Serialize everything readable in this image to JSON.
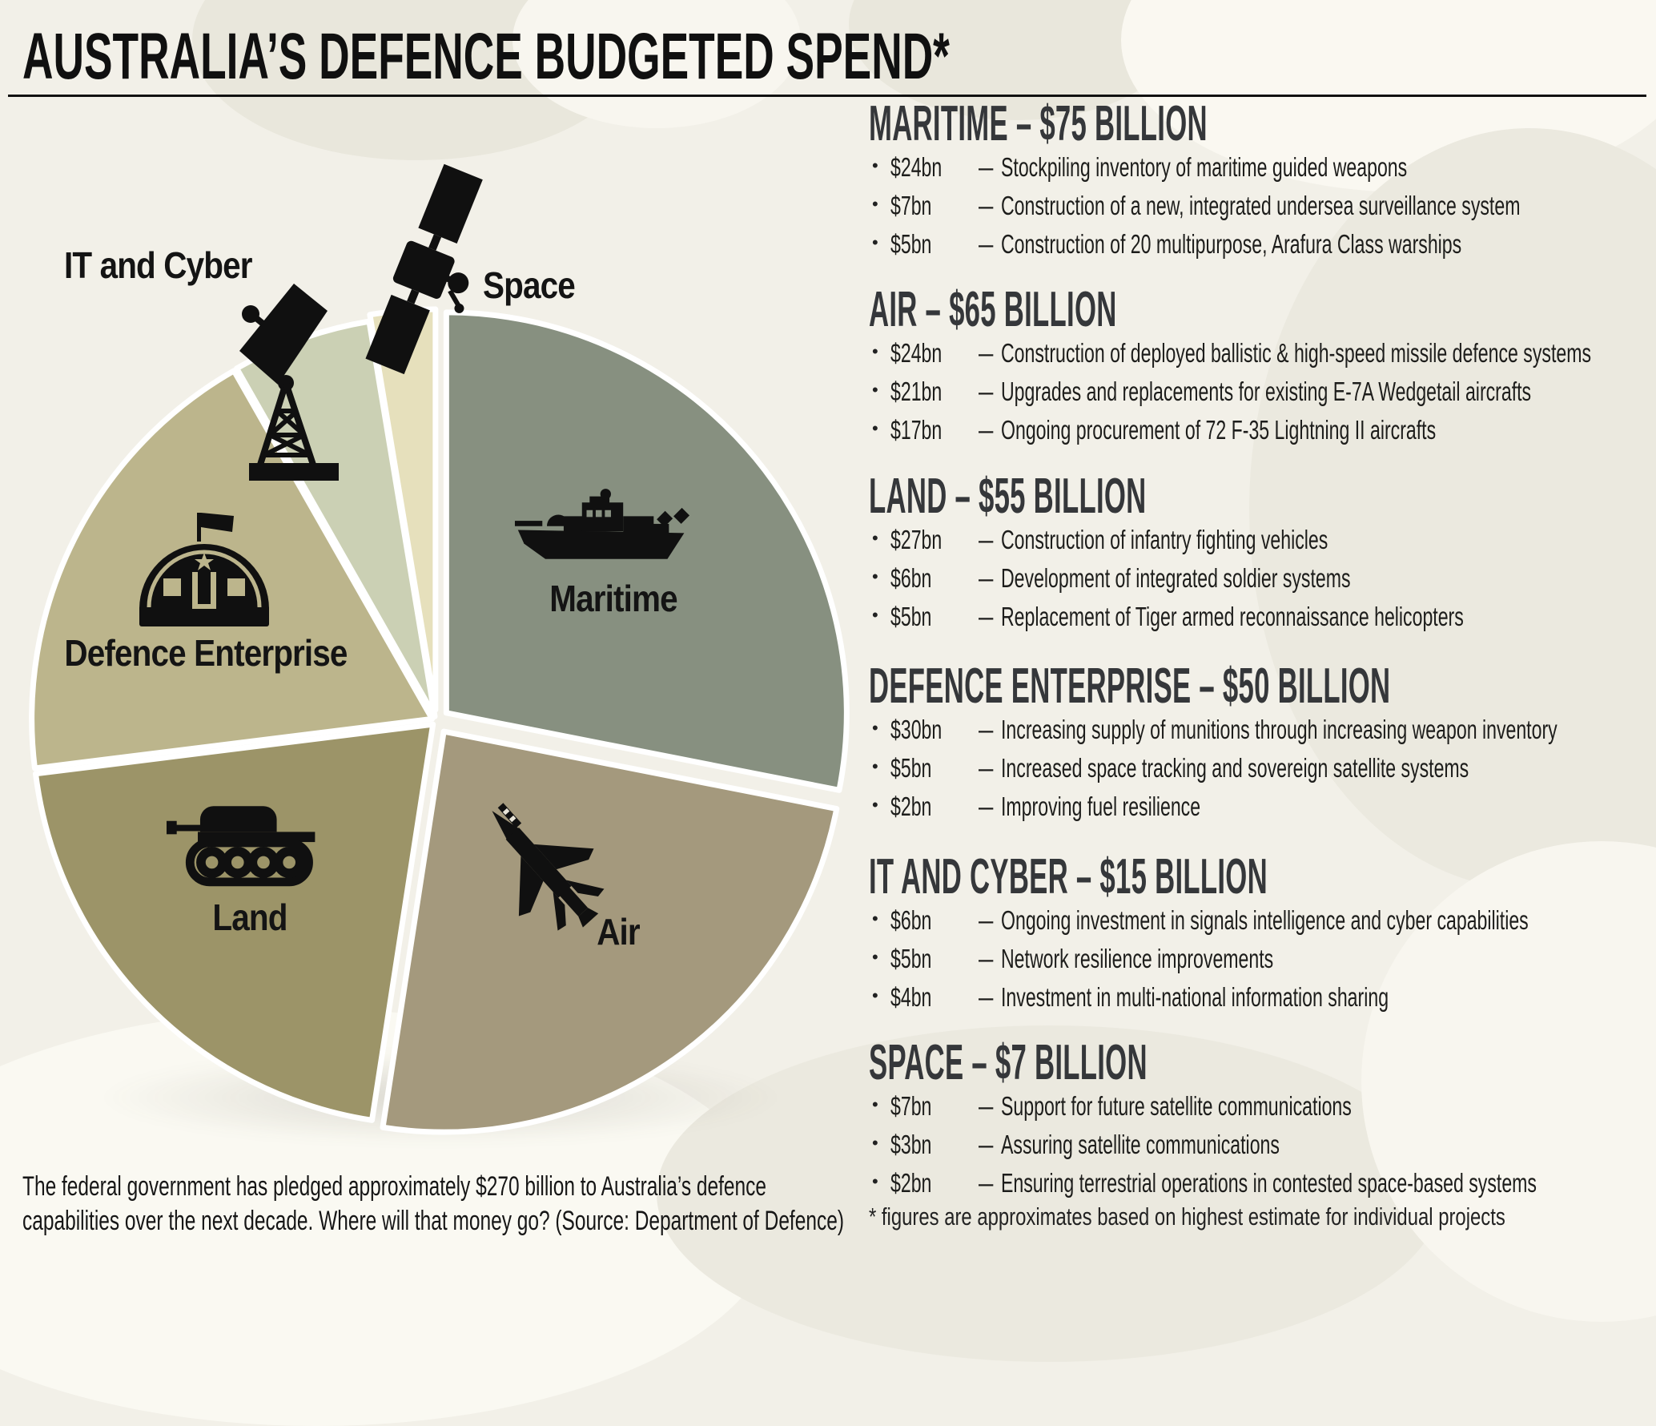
{
  "title": "AUSTRALIA’S DEFENCE BUDGETED SPEND*",
  "chart_data": {
    "type": "pie",
    "unit": "AUD billions",
    "categories": [
      "Maritime",
      "Air",
      "Land",
      "Defence Enterprise",
      "IT and Cyber",
      "Space"
    ],
    "values": [
      75,
      65,
      55,
      50,
      15,
      7
    ],
    "colors": [
      "#879080",
      "#A4997D",
      "#9C9468",
      "#BCB58C",
      "#CBD0B4",
      "#E6E0BC"
    ],
    "start_angle_deg": 0,
    "direction": "clockwise",
    "separator_color": "#FFFFFF",
    "label_placement": [
      "inside",
      "inside",
      "inside",
      "inside",
      "outside",
      "outside"
    ]
  },
  "icons": {
    "maritime": "warship",
    "air": "fighter-jet",
    "land": "tank",
    "defence_enterprise": "military-hut",
    "it_and_cyber": "radar-dish-tower",
    "space": "satellite"
  },
  "list_bullet": "•",
  "list_dash": "–",
  "sections": [
    {
      "heading": "MARITIME – $75 BILLION",
      "items": [
        {
          "amount": "$24bn",
          "desc": "Stockpiling inventory of maritime guided weapons"
        },
        {
          "amount": "$7bn",
          "desc": "Construction of a new, integrated undersea surveillance system"
        },
        {
          "amount": "$5bn",
          "desc": "Construction of 20 multipurpose, Arafura Class warships"
        }
      ]
    },
    {
      "heading": "AIR – $65 BILLION",
      "items": [
        {
          "amount": "$24bn",
          "desc": "Construction of deployed ballistic & high-speed missile defence systems"
        },
        {
          "amount": "$21bn",
          "desc": "Upgrades and replacements for existing E-7A Wedgetail aircrafts"
        },
        {
          "amount": "$17bn",
          "desc": "Ongoing procurement of 72 F-35 Lightning II aircrafts"
        }
      ]
    },
    {
      "heading": "LAND – $55 BILLION",
      "items": [
        {
          "amount": "$27bn",
          "desc": "Construction of infantry fighting vehicles"
        },
        {
          "amount": "$6bn",
          "desc": "Development of integrated soldier systems"
        },
        {
          "amount": "$5bn",
          "desc": "Replacement of Tiger armed reconnaissance helicopters"
        }
      ]
    },
    {
      "heading": "DEFENCE ENTERPRISE – $50 BILLION",
      "items": [
        {
          "amount": "$30bn",
          "desc": "Increasing supply of munitions through increasing weapon inventory"
        },
        {
          "amount": "$5bn",
          "desc": "Increased space tracking and sovereign satellite systems"
        },
        {
          "amount": "$2bn",
          "desc": "Improving fuel resilience"
        }
      ]
    },
    {
      "heading": "IT AND CYBER – $15 BILLION",
      "items": [
        {
          "amount": "$6bn",
          "desc": "Ongoing investment in signals intelligence and cyber capabilities"
        },
        {
          "amount": "$5bn",
          "desc": "Network resilience improvements"
        },
        {
          "amount": "$4bn",
          "desc": "Investment in multi-national information sharing"
        }
      ]
    },
    {
      "heading": "SPACE – $7 BILLION",
      "items": [
        {
          "amount": "$7bn",
          "desc": "Support for future satellite communications"
        },
        {
          "amount": "$3bn",
          "desc": "Assuring satellite communications"
        },
        {
          "amount": "$2bn",
          "desc": "Ensuring terrestrial operations in contested space-based systems"
        }
      ]
    }
  ],
  "footer": {
    "note_line1": "The federal government has pledged approximately $270 billion to Australia’s defence",
    "note_line2": "capabilities over the next decade. Where will that money go? (Source: Department of Defence)",
    "footnote": "* figures are approximates based on highest estimate for individual projects"
  }
}
